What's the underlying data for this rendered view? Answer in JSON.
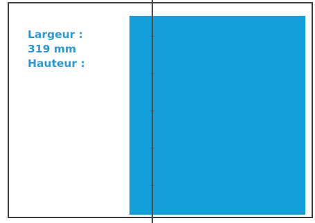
{
  "labels": {
    "width_label": "Largeur :",
    "width_value": "319 mm",
    "height_label": "Hauteur :"
  },
  "colors": {
    "label_text": "#2a9ad6",
    "panel_fill": "#139fdb",
    "frame_border": "#3c3c3c",
    "fold_line": "#4a4a4a",
    "background": "#ffffff"
  }
}
